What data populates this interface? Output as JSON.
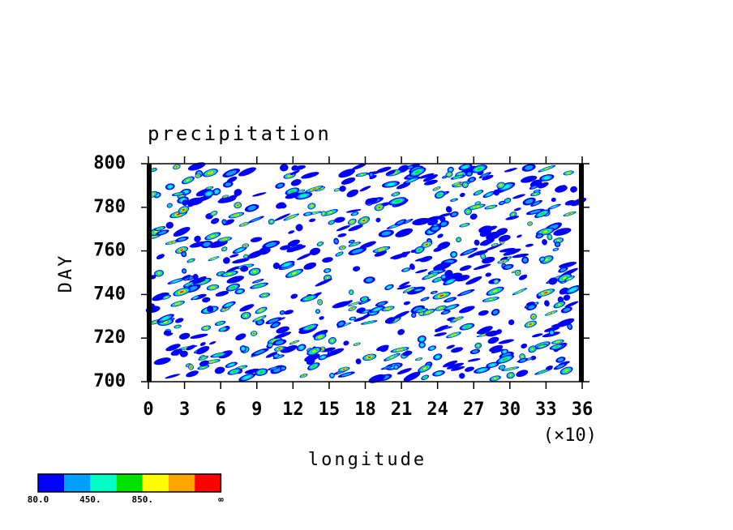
{
  "chart_data": {
    "type": "hovmoller",
    "title": "precipitation",
    "x_label": "longitude",
    "x_multiplier": "(×10)",
    "y_label": "DAY",
    "xlim": [
      0,
      36
    ],
    "xticks": [
      0,
      3,
      6,
      9,
      12,
      15,
      18,
      21,
      24,
      27,
      30,
      33,
      36
    ],
    "ylim": [
      700,
      800
    ],
    "yticks": [
      700,
      720,
      740,
      760,
      780,
      800
    ],
    "colorbar": {
      "colors": [
        "#0000ff",
        "#00a0ff",
        "#00ffc8",
        "#00e100",
        "#ffff00",
        "#ffa500",
        "#ff0000"
      ],
      "labels": [
        "80.0",
        "450.",
        "850.",
        "∞"
      ]
    }
  }
}
